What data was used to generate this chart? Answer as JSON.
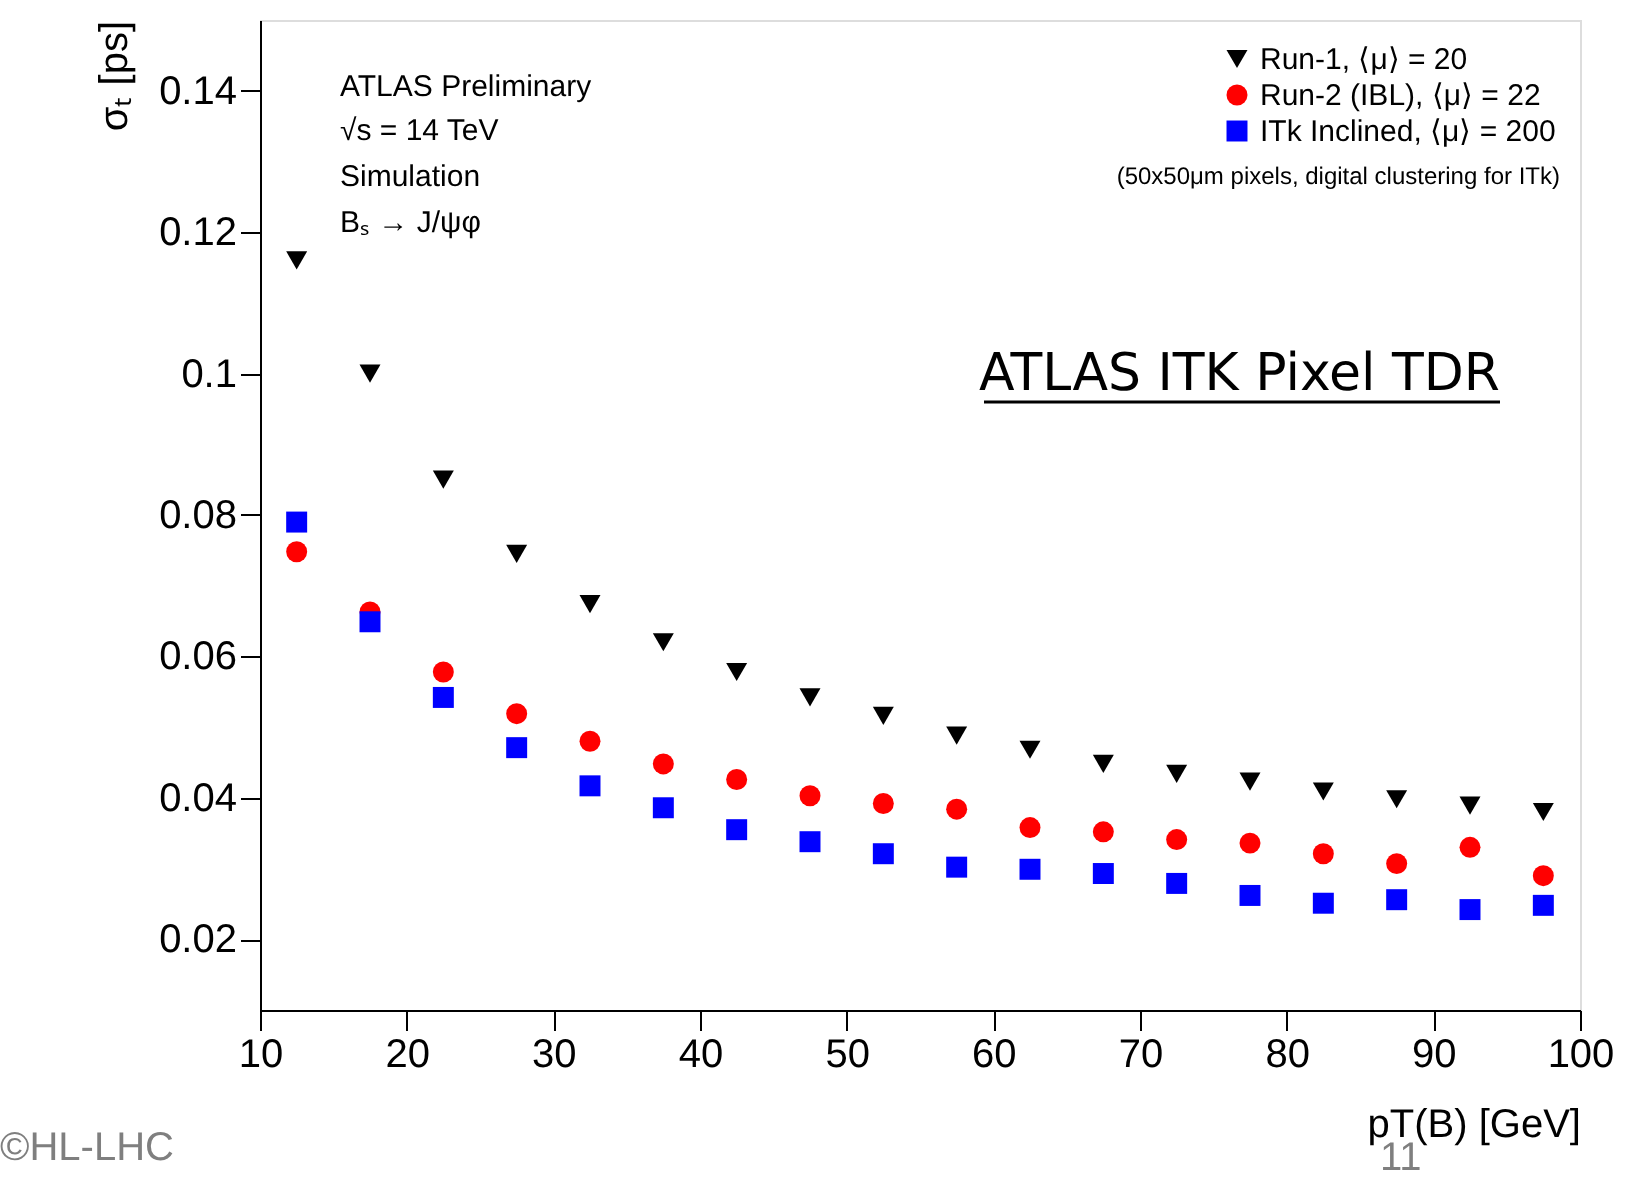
{
  "chart_data": {
    "type": "scatter",
    "xlabel": "pT(B) [GeV]",
    "ylabel": "σₜ [ps]",
    "x": [
      12.5,
      17.5,
      22.5,
      27.5,
      32.5,
      37.5,
      42.5,
      47.5,
      52.5,
      57.5,
      62.5,
      67.5,
      72.5,
      77.5,
      82.5,
      87.5,
      92.5,
      97.5
    ],
    "series": [
      {
        "name": "Run-1, ⟨μ⟩ = 20",
        "color": "#000000",
        "marker": "triangle",
        "values": [
          0.116,
          0.1,
          0.085,
          0.0745,
          0.0674,
          0.062,
          0.0578,
          0.0542,
          0.0516,
          0.0488,
          0.0468,
          0.0448,
          0.0434,
          0.0423,
          0.0409,
          0.0398,
          0.0389,
          0.038
        ]
      },
      {
        "name": "Run-2 (IBL), ⟨μ⟩ = 22",
        "color": "#ff0000",
        "marker": "circle",
        "values": [
          0.0748,
          0.0663,
          0.0578,
          0.0519,
          0.048,
          0.0448,
          0.0426,
          0.0403,
          0.0392,
          0.0384,
          0.0358,
          0.0352,
          0.0341,
          0.0336,
          0.0321,
          0.0307,
          0.033,
          0.029
        ]
      },
      {
        "name": "ITk Inclined, ⟨μ⟩ = 200",
        "color": "#0000ff",
        "marker": "square",
        "values": [
          0.079,
          0.0649,
          0.0542,
          0.0471,
          0.0417,
          0.0386,
          0.0355,
          0.0338,
          0.0321,
          0.0302,
          0.0299,
          0.0293,
          0.0279,
          0.0262,
          0.0251,
          0.0256,
          0.0242,
          0.0248
        ]
      }
    ],
    "xlim": [
      10,
      100
    ],
    "xticks": [
      10,
      20,
      30,
      40,
      50,
      60,
      70,
      80,
      90,
      100
    ],
    "ylim": [
      0.01,
      0.15
    ],
    "yticks": [
      0.02,
      0.04,
      0.06,
      0.08,
      0.1,
      0.12,
      0.14
    ],
    "grid": false,
    "legend": "top right",
    "annotations": [
      "ATLAS Preliminary",
      "√s = 14 TeV",
      "Simulation",
      "Bₛ → J/ψφ",
      "(50x50μm pixels, digital clustering for ITk)",
      "ATLAS ITK Pixel TDR",
      "©HL-LHC",
      "11"
    ]
  }
}
